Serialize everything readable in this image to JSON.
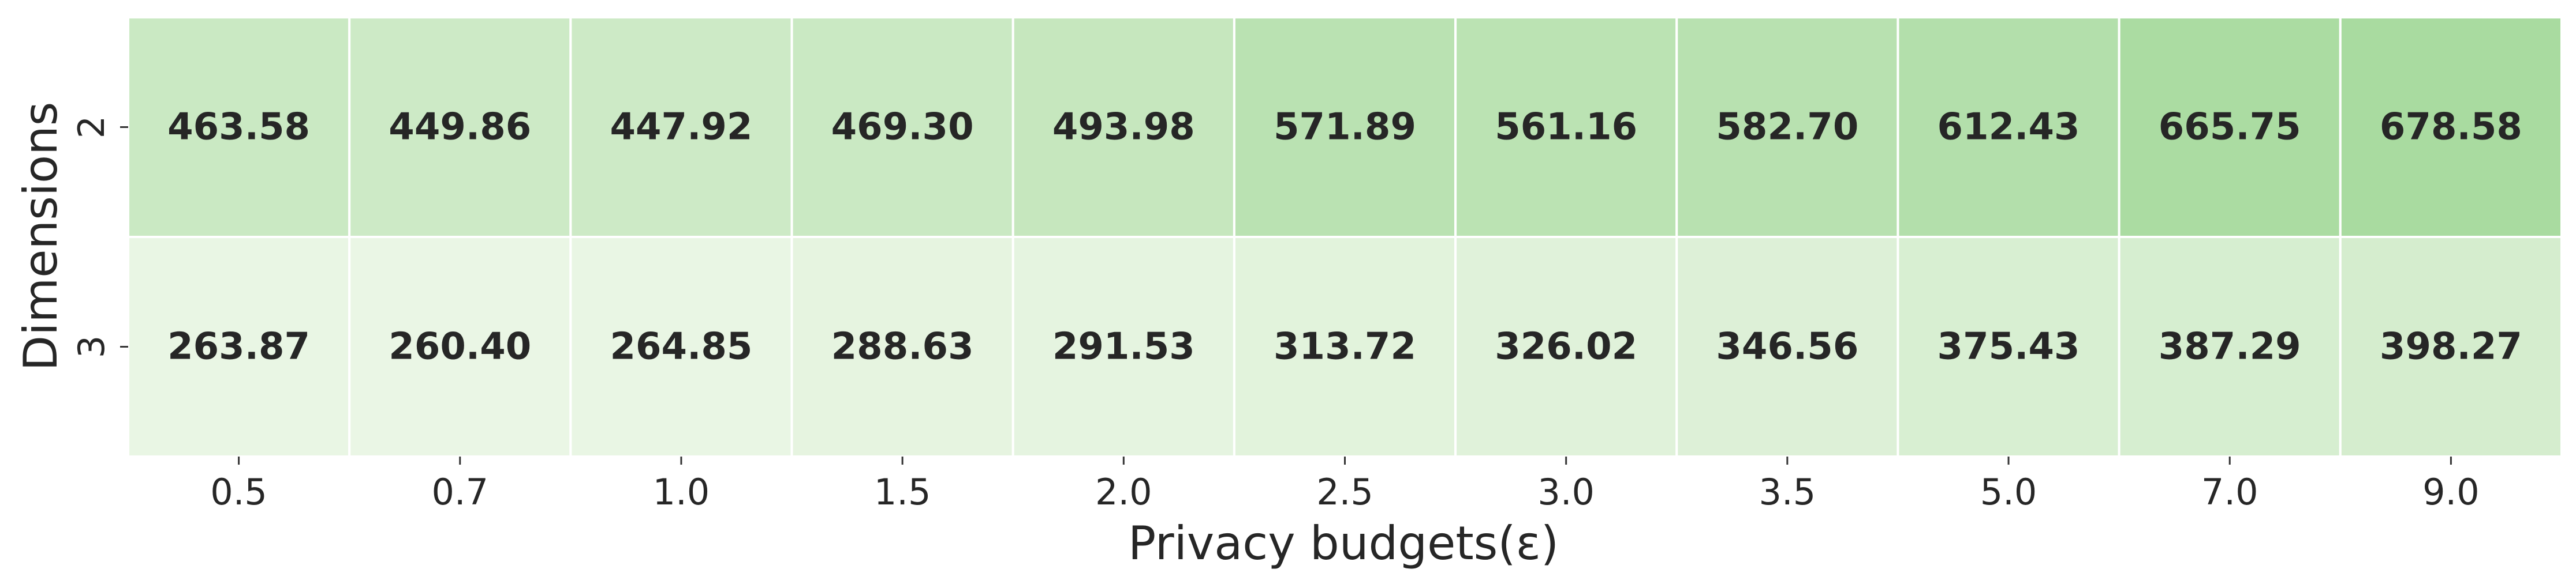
{
  "chart_data": {
    "type": "heatmap",
    "xlabel": "Privacy budgets(ε)",
    "ylabel": "Dimensions",
    "x_categories": [
      "0.5",
      "0.7",
      "1.0",
      "1.5",
      "2.0",
      "2.5",
      "3.0",
      "3.5",
      "5.0",
      "7.0",
      "9.0"
    ],
    "y_categories": [
      "2",
      "3"
    ],
    "values": [
      [
        463.58,
        449.86,
        447.92,
        469.3,
        493.98,
        571.89,
        561.16,
        582.7,
        612.43,
        665.75,
        678.58
      ],
      [
        263.87,
        260.4,
        264.85,
        288.63,
        291.53,
        313.72,
        326.02,
        346.56,
        375.43,
        387.29,
        398.27
      ]
    ],
    "value_format": "2 decimals",
    "colormap": "Greens",
    "color_low": "#eaf6e5",
    "color_high": "#a9dba0",
    "cell_border_color": "#ffffff",
    "colorbar": false
  }
}
